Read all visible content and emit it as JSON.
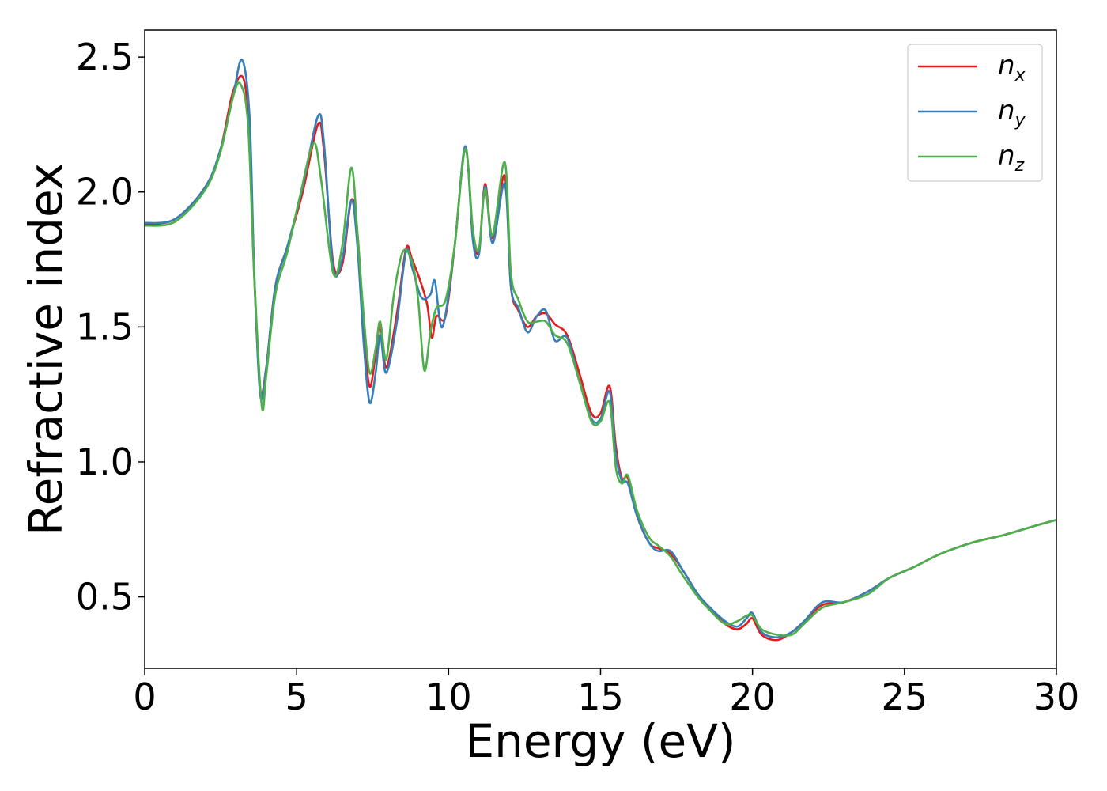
{
  "chart_data": {
    "type": "line",
    "xlabel": "Energy (eV)",
    "ylabel": "Refractive index",
    "xlim": [
      0,
      30
    ],
    "ylim": [
      0.235,
      2.6
    ],
    "x_ticks": [
      {
        "value": 0,
        "label": "0"
      },
      {
        "value": 5,
        "label": "5"
      },
      {
        "value": 10,
        "label": "10"
      },
      {
        "value": 15,
        "label": "15"
      },
      {
        "value": 20,
        "label": "20"
      },
      {
        "value": 25,
        "label": "25"
      },
      {
        "value": 30,
        "label": "30"
      }
    ],
    "y_ticks": [
      {
        "value": 0.5,
        "label": "0.5"
      },
      {
        "value": 1.0,
        "label": "1.0"
      },
      {
        "value": 1.5,
        "label": "1.5"
      },
      {
        "value": 2.0,
        "label": "2.0"
      },
      {
        "value": 2.5,
        "label": "2.5"
      }
    ],
    "grid": false,
    "legend_position": "top-right",
    "series": [
      {
        "name": "n_x",
        "label_base": "n",
        "label_sub": "x",
        "color": "#e41a1c",
        "points": [
          [
            0,
            1.88
          ],
          [
            1,
            1.9
          ],
          [
            2,
            2.02
          ],
          [
            2.5,
            2.16
          ],
          [
            2.9,
            2.37
          ],
          [
            3.25,
            2.42
          ],
          [
            3.45,
            2.2
          ],
          [
            3.6,
            1.7
          ],
          [
            3.8,
            1.27
          ],
          [
            4.0,
            1.35
          ],
          [
            4.3,
            1.65
          ],
          [
            4.7,
            1.8
          ],
          [
            5.2,
            2.0
          ],
          [
            5.7,
            2.25
          ],
          [
            5.9,
            2.15
          ],
          [
            6.2,
            1.74
          ],
          [
            6.5,
            1.73
          ],
          [
            6.8,
            1.97
          ],
          [
            7.0,
            1.85
          ],
          [
            7.2,
            1.5
          ],
          [
            7.4,
            1.28
          ],
          [
            7.6,
            1.4
          ],
          [
            7.75,
            1.51
          ],
          [
            7.95,
            1.35
          ],
          [
            8.3,
            1.55
          ],
          [
            8.6,
            1.79
          ],
          [
            8.8,
            1.75
          ],
          [
            9.1,
            1.66
          ],
          [
            9.3,
            1.58
          ],
          [
            9.45,
            1.46
          ],
          [
            9.6,
            1.54
          ],
          [
            9.9,
            1.54
          ],
          [
            10.2,
            1.8
          ],
          [
            10.55,
            2.16
          ],
          [
            10.8,
            1.85
          ],
          [
            11.0,
            1.78
          ],
          [
            11.2,
            2.03
          ],
          [
            11.45,
            1.83
          ],
          [
            11.85,
            2.06
          ],
          [
            12.05,
            1.65
          ],
          [
            12.3,
            1.56
          ],
          [
            12.6,
            1.5
          ],
          [
            12.9,
            1.54
          ],
          [
            13.2,
            1.55
          ],
          [
            13.5,
            1.51
          ],
          [
            13.9,
            1.47
          ],
          [
            14.3,
            1.33
          ],
          [
            14.7,
            1.18
          ],
          [
            15.0,
            1.18
          ],
          [
            15.3,
            1.28
          ],
          [
            15.5,
            1.06
          ],
          [
            15.7,
            0.94
          ],
          [
            15.9,
            0.94
          ],
          [
            16.2,
            0.8
          ],
          [
            16.6,
            0.7
          ],
          [
            16.9,
            0.68
          ],
          [
            17.3,
            0.66
          ],
          [
            17.7,
            0.6
          ],
          [
            18.2,
            0.51
          ],
          [
            18.6,
            0.46
          ],
          [
            19.1,
            0.4
          ],
          [
            19.5,
            0.38
          ],
          [
            19.8,
            0.4
          ],
          [
            20.0,
            0.42
          ],
          [
            20.3,
            0.36
          ],
          [
            20.8,
            0.34
          ],
          [
            21.3,
            0.37
          ],
          [
            21.7,
            0.41
          ],
          [
            22.3,
            0.47
          ],
          [
            23.0,
            0.48
          ],
          [
            23.8,
            0.52
          ],
          [
            24.5,
            0.57
          ],
          [
            25.3,
            0.61
          ],
          [
            26.2,
            0.66
          ],
          [
            27.2,
            0.7
          ],
          [
            28.3,
            0.73
          ],
          [
            29.2,
            0.76
          ],
          [
            30,
            0.785
          ]
        ]
      },
      {
        "name": "n_y",
        "label_base": "n",
        "label_sub": "y",
        "color": "#377eb8",
        "points": [
          [
            0,
            1.885
          ],
          [
            1,
            1.9
          ],
          [
            2,
            2.02
          ],
          [
            2.5,
            2.16
          ],
          [
            2.9,
            2.35
          ],
          [
            3.2,
            2.49
          ],
          [
            3.45,
            2.28
          ],
          [
            3.6,
            1.72
          ],
          [
            3.8,
            1.25
          ],
          [
            4.0,
            1.35
          ],
          [
            4.3,
            1.65
          ],
          [
            4.7,
            1.8
          ],
          [
            5.2,
            2.02
          ],
          [
            5.7,
            2.28
          ],
          [
            5.9,
            2.18
          ],
          [
            6.2,
            1.72
          ],
          [
            6.5,
            1.75
          ],
          [
            6.8,
            1.97
          ],
          [
            7.0,
            1.8
          ],
          [
            7.2,
            1.45
          ],
          [
            7.4,
            1.22
          ],
          [
            7.6,
            1.33
          ],
          [
            7.75,
            1.47
          ],
          [
            7.95,
            1.33
          ],
          [
            8.3,
            1.52
          ],
          [
            8.6,
            1.78
          ],
          [
            8.8,
            1.72
          ],
          [
            9.1,
            1.61
          ],
          [
            9.4,
            1.62
          ],
          [
            9.55,
            1.67
          ],
          [
            9.8,
            1.5
          ],
          [
            10.2,
            1.8
          ],
          [
            10.55,
            2.17
          ],
          [
            10.8,
            1.82
          ],
          [
            11.0,
            1.77
          ],
          [
            11.2,
            2.02
          ],
          [
            11.45,
            1.81
          ],
          [
            11.85,
            2.03
          ],
          [
            12.05,
            1.65
          ],
          [
            12.3,
            1.57
          ],
          [
            12.6,
            1.48
          ],
          [
            12.9,
            1.54
          ],
          [
            13.2,
            1.56
          ],
          [
            13.5,
            1.45
          ],
          [
            13.9,
            1.46
          ],
          [
            14.3,
            1.3
          ],
          [
            14.7,
            1.16
          ],
          [
            15.0,
            1.16
          ],
          [
            15.3,
            1.26
          ],
          [
            15.5,
            1.03
          ],
          [
            15.7,
            0.93
          ],
          [
            15.9,
            0.92
          ],
          [
            16.2,
            0.8
          ],
          [
            16.6,
            0.7
          ],
          [
            16.9,
            0.67
          ],
          [
            17.3,
            0.67
          ],
          [
            17.7,
            0.6
          ],
          [
            18.2,
            0.51
          ],
          [
            18.6,
            0.46
          ],
          [
            19.1,
            0.41
          ],
          [
            19.5,
            0.39
          ],
          [
            19.8,
            0.42
          ],
          [
            20.0,
            0.44
          ],
          [
            20.3,
            0.37
          ],
          [
            20.8,
            0.35
          ],
          [
            21.3,
            0.37
          ],
          [
            21.7,
            0.41
          ],
          [
            22.3,
            0.48
          ],
          [
            23.0,
            0.48
          ],
          [
            23.8,
            0.52
          ],
          [
            24.5,
            0.57
          ],
          [
            25.3,
            0.61
          ],
          [
            26.2,
            0.66
          ],
          [
            27.2,
            0.7
          ],
          [
            28.3,
            0.73
          ],
          [
            29.2,
            0.76
          ],
          [
            30,
            0.785
          ]
        ]
      },
      {
        "name": "n_z",
        "label_base": "n",
        "label_sub": "z",
        "color": "#4daf4a",
        "points": [
          [
            0,
            1.875
          ],
          [
            1,
            1.89
          ],
          [
            2,
            2.01
          ],
          [
            2.5,
            2.15
          ],
          [
            2.9,
            2.35
          ],
          [
            3.15,
            2.4
          ],
          [
            3.4,
            2.25
          ],
          [
            3.6,
            1.7
          ],
          [
            3.85,
            1.21
          ],
          [
            4.0,
            1.32
          ],
          [
            4.3,
            1.62
          ],
          [
            4.7,
            1.78
          ],
          [
            5.1,
            1.98
          ],
          [
            5.55,
            2.18
          ],
          [
            5.8,
            2.05
          ],
          [
            6.2,
            1.7
          ],
          [
            6.5,
            1.8
          ],
          [
            6.8,
            2.09
          ],
          [
            7.0,
            1.85
          ],
          [
            7.2,
            1.55
          ],
          [
            7.4,
            1.33
          ],
          [
            7.6,
            1.42
          ],
          [
            7.75,
            1.52
          ],
          [
            7.95,
            1.38
          ],
          [
            8.2,
            1.62
          ],
          [
            8.5,
            1.78
          ],
          [
            8.8,
            1.74
          ],
          [
            9.0,
            1.6
          ],
          [
            9.2,
            1.34
          ],
          [
            9.4,
            1.48
          ],
          [
            9.6,
            1.57
          ],
          [
            9.9,
            1.6
          ],
          [
            10.2,
            1.8
          ],
          [
            10.55,
            2.16
          ],
          [
            10.8,
            1.86
          ],
          [
            11.0,
            1.79
          ],
          [
            11.2,
            2.01
          ],
          [
            11.45,
            1.84
          ],
          [
            11.85,
            2.11
          ],
          [
            12.05,
            1.7
          ],
          [
            12.3,
            1.6
          ],
          [
            12.6,
            1.52
          ],
          [
            12.9,
            1.52
          ],
          [
            13.2,
            1.52
          ],
          [
            13.5,
            1.47
          ],
          [
            13.9,
            1.44
          ],
          [
            14.3,
            1.3
          ],
          [
            14.7,
            1.15
          ],
          [
            15.0,
            1.15
          ],
          [
            15.3,
            1.22
          ],
          [
            15.5,
            0.98
          ],
          [
            15.7,
            0.92
          ],
          [
            15.9,
            0.95
          ],
          [
            16.2,
            0.82
          ],
          [
            16.6,
            0.72
          ],
          [
            16.9,
            0.69
          ],
          [
            17.3,
            0.65
          ],
          [
            17.7,
            0.58
          ],
          [
            18.2,
            0.5
          ],
          [
            18.6,
            0.45
          ],
          [
            19.1,
            0.4
          ],
          [
            19.5,
            0.41
          ],
          [
            19.8,
            0.43
          ],
          [
            20.0,
            0.43
          ],
          [
            20.3,
            0.38
          ],
          [
            20.8,
            0.36
          ],
          [
            21.3,
            0.36
          ],
          [
            21.7,
            0.4
          ],
          [
            22.3,
            0.46
          ],
          [
            23.0,
            0.48
          ],
          [
            23.8,
            0.51
          ],
          [
            24.5,
            0.57
          ],
          [
            25.3,
            0.61
          ],
          [
            26.2,
            0.66
          ],
          [
            27.2,
            0.7
          ],
          [
            28.3,
            0.73
          ],
          [
            29.2,
            0.76
          ],
          [
            30,
            0.785
          ]
        ]
      }
    ]
  }
}
